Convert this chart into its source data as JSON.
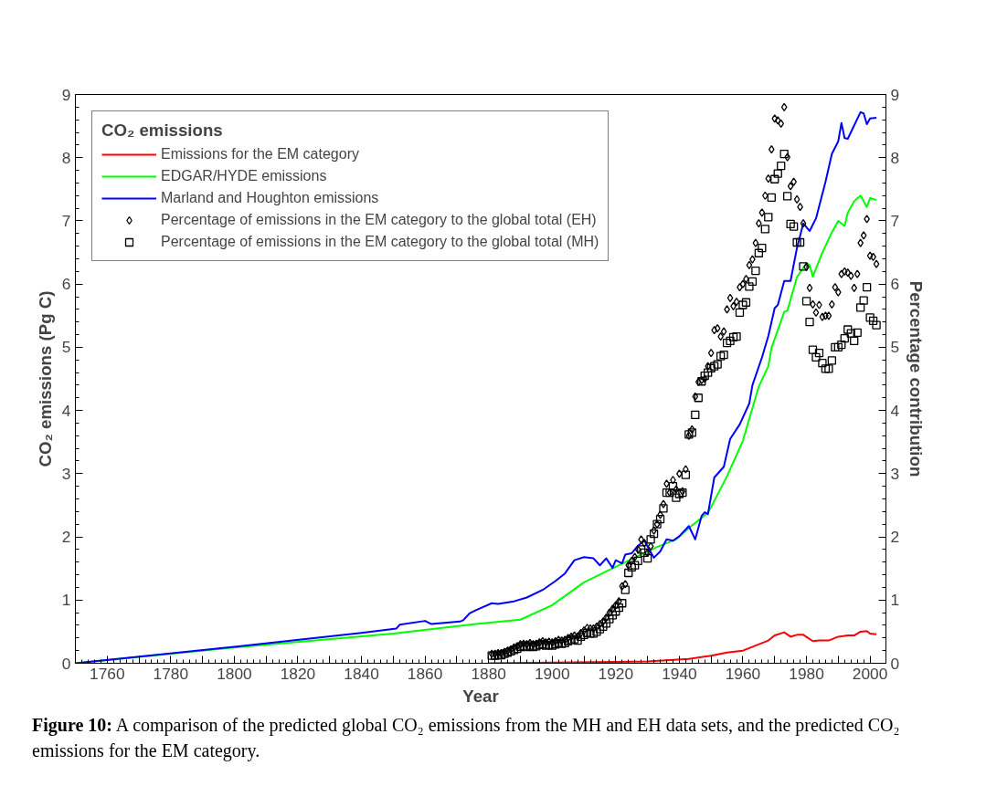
{
  "chart_data": {
    "type": "line",
    "xlabel": "Year",
    "ylabel": "CO₂ emissions (Pg C)",
    "y2label": "Percentage contribution",
    "legend_title": "CO₂ emissions",
    "xlim": [
      1750,
      2005
    ],
    "ylim": [
      0,
      9
    ],
    "y2lim": [
      0,
      9
    ],
    "xticks": [
      {
        "value": 1750,
        "label": null
      },
      1760,
      {
        "value": 1770,
        "label": null
      },
      1780,
      {
        "value": 1790,
        "label": null
      },
      1800,
      {
        "value": 1810,
        "label": null
      },
      1820,
      {
        "value": 1830,
        "label": null
      },
      1840,
      {
        "value": 1850,
        "label": null
      },
      1860,
      {
        "value": 1870,
        "label": null
      },
      1880,
      {
        "value": 1890,
        "label": null
      },
      1900,
      {
        "value": 1910,
        "label": null
      },
      1920,
      {
        "value": 1930,
        "label": null
      },
      1940,
      {
        "value": 1950,
        "label": null
      },
      1960,
      {
        "value": 1970,
        "label": null
      },
      1980,
      {
        "value": 1990,
        "label": null
      },
      2000
    ],
    "yticks": [
      0,
      1,
      2,
      3,
      4,
      5,
      6,
      7,
      8,
      9
    ],
    "y2ticks": [
      0,
      1,
      2,
      3,
      4,
      5,
      6,
      7,
      8,
      9
    ],
    "grid": false,
    "legend": "top left",
    "x": [
      1881,
      1882,
      1883,
      1884,
      1885,
      1886,
      1887,
      1888,
      1889,
      1890,
      1891,
      1892,
      1893,
      1894,
      1895,
      1896,
      1897,
      1898,
      1899,
      1900,
      1901,
      1902,
      1903,
      1904,
      1905,
      1906,
      1907,
      1908,
      1909,
      1910,
      1911,
      1912,
      1913,
      1914,
      1915,
      1916,
      1917,
      1918,
      1919,
      1920,
      1921,
      1922,
      1923,
      1924,
      1925,
      1926,
      1927,
      1928,
      1929,
      1930,
      1931,
      1932,
      1933,
      1934,
      1935,
      1936,
      1937,
      1938,
      1939,
      1940,
      1941,
      1942,
      1943,
      1944,
      1945,
      1946,
      1947,
      1948,
      1949,
      1950,
      1951,
      1952,
      1953,
      1954,
      1955,
      1956,
      1957,
      1958,
      1959,
      1960,
      1961,
      1962,
      1963,
      1964,
      1965,
      1966,
      1967,
      1968,
      1969,
      1970,
      1971,
      1972,
      1973,
      1974,
      1975,
      1976,
      1977,
      1978,
      1979,
      1980,
      1981,
      1982,
      1983,
      1984,
      1985,
      1986,
      1987,
      1988,
      1989,
      1990,
      1991,
      1992,
      1993,
      1994,
      1995,
      1996,
      1997,
      1998,
      1999,
      2000,
      2001,
      2002
    ],
    "series": [
      {
        "name": "Emissions for the EM category",
        "color": "#ff0000",
        "x": [
          1880,
          1900,
          1920,
          1930,
          1943,
          1950,
          1955,
          1960,
          1964,
          1968,
          1970,
          1973,
          1975,
          1977,
          1979,
          1982,
          1984,
          1987,
          1990,
          1993,
          1995,
          1997,
          1999,
          2000,
          2002
        ],
        "values": [
          0,
          0.01,
          0.02,
          0.03,
          0.07,
          0.12,
          0.17,
          0.2,
          0.28,
          0.36,
          0.44,
          0.49,
          0.42,
          0.45,
          0.45,
          0.35,
          0.36,
          0.36,
          0.42,
          0.44,
          0.44,
          0.5,
          0.51,
          0.47,
          0.46
        ]
      },
      {
        "name": "EDGAR/HYDE emissions",
        "color": "#00ff00",
        "x": [
          1750,
          1800,
          1850,
          1876,
          1890,
          1900,
          1910,
          1921,
          1933,
          1939,
          1944,
          1949,
          1951,
          1955,
          1960,
          1965,
          1968,
          1969,
          1973,
          1974,
          1977,
          1980,
          1981,
          1982,
          1985,
          1988,
          1990,
          1992,
          1993,
          1995,
          1997,
          1999,
          2000,
          2002
        ],
        "values": [
          0,
          0.25,
          0.47,
          0.62,
          0.69,
          0.92,
          1.28,
          1.55,
          1.84,
          1.96,
          2.18,
          2.38,
          2.57,
          2.96,
          3.52,
          4.38,
          4.7,
          4.99,
          5.56,
          5.58,
          6.11,
          6.33,
          6.3,
          6.12,
          6.5,
          6.82,
          7.0,
          6.92,
          7.13,
          7.31,
          7.4,
          7.22,
          7.36,
          7.33
        ]
      },
      {
        "name": "Marland and Houghton emissions",
        "color": "#0000ff",
        "x": [
          1750,
          1800,
          1840,
          1851,
          1852,
          1860,
          1862,
          1871,
          1872,
          1874,
          1876,
          1881,
          1883,
          1888,
          1892,
          1897,
          1901,
          1904,
          1907,
          1910,
          1913,
          1915,
          1917,
          1919,
          1920,
          1922,
          1923,
          1925,
          1927,
          1929,
          1930,
          1932,
          1934,
          1936,
          1938,
          1940,
          1943,
          1945,
          1947,
          1948,
          1949,
          1951,
          1954,
          1956,
          1959,
          1962,
          1963,
          1966,
          1968,
          1970,
          1971,
          1973,
          1975,
          1977,
          1979,
          1981,
          1983,
          1986,
          1988,
          1990,
          1991,
          1992,
          1993,
          1997,
          1998,
          1999,
          2000,
          2002
        ],
        "values": [
          0,
          0.26,
          0.48,
          0.55,
          0.61,
          0.67,
          0.62,
          0.66,
          0.68,
          0.79,
          0.84,
          0.95,
          0.94,
          0.98,
          1.04,
          1.16,
          1.3,
          1.42,
          1.63,
          1.68,
          1.66,
          1.55,
          1.66,
          1.51,
          1.63,
          1.58,
          1.72,
          1.74,
          1.86,
          1.94,
          1.85,
          1.67,
          1.77,
          1.96,
          1.94,
          2.01,
          2.17,
          1.96,
          2.33,
          2.39,
          2.36,
          2.94,
          3.11,
          3.55,
          3.78,
          4.11,
          4.4,
          4.84,
          5.18,
          5.62,
          5.67,
          6.05,
          6.05,
          6.57,
          6.96,
          6.84,
          7.04,
          7.62,
          8.06,
          8.26,
          8.55,
          8.31,
          8.3,
          8.72,
          8.7,
          8.53,
          8.62,
          8.63
        ]
      },
      {
        "name": "Percentage of emissions in the EM category to the global total (EH)",
        "type": "scatter",
        "marker": "diamond",
        "axis": "y2",
        "color": "#000000",
        "values": [
          0.15,
          0.15,
          0.16,
          0.16,
          0.18,
          0.2,
          0.22,
          0.25,
          0.27,
          0.3,
          0.31,
          0.3,
          0.32,
          0.3,
          0.31,
          0.33,
          0.35,
          0.33,
          0.34,
          0.33,
          0.35,
          0.37,
          0.36,
          0.37,
          0.4,
          0.42,
          0.44,
          0.42,
          0.48,
          0.52,
          0.56,
          0.55,
          0.55,
          0.58,
          0.62,
          0.66,
          0.72,
          0.8,
          0.86,
          0.92,
          0.98,
          1.22,
          1.25,
          1.55,
          1.62,
          1.68,
          1.8,
          1.96,
          1.9,
          1.75,
          1.85,
          2.1,
          2.2,
          2.35,
          2.52,
          2.84,
          2.7,
          2.9,
          2.75,
          3.0,
          2.72,
          3.07,
          3.6,
          3.7,
          4.22,
          4.45,
          4.48,
          4.5,
          4.7,
          4.91,
          5.27,
          5.3,
          5.17,
          5.25,
          5.6,
          5.78,
          5.65,
          5.72,
          5.95,
          6.0,
          6.08,
          6.3,
          6.39,
          6.65,
          6.96,
          7.13,
          7.4,
          7.67,
          8.13,
          8.62,
          8.59,
          8.54,
          8.8,
          8.01,
          7.55,
          7.62,
          7.34,
          7.22,
          6.96,
          6.27,
          5.94,
          5.68,
          5.55,
          5.67,
          5.48,
          5.5,
          5.5,
          5.68,
          5.95,
          5.87,
          6.16,
          6.2,
          6.18,
          6.13,
          5.94,
          6.16,
          6.65,
          6.77,
          7.03,
          6.45,
          6.43,
          6.32
        ]
      },
      {
        "name": "Percentage of emissions in the EM category to the global total (MH)",
        "type": "scatter",
        "marker": "square",
        "axis": "y2",
        "color": "#000000",
        "values": [
          0.12,
          0.12,
          0.13,
          0.13,
          0.15,
          0.17,
          0.19,
          0.21,
          0.23,
          0.26,
          0.27,
          0.26,
          0.28,
          0.26,
          0.27,
          0.29,
          0.3,
          0.28,
          0.29,
          0.28,
          0.3,
          0.32,
          0.31,
          0.32,
          0.35,
          0.37,
          0.38,
          0.36,
          0.42,
          0.45,
          0.48,
          0.47,
          0.47,
          0.5,
          0.54,
          0.58,
          0.63,
          0.7,
          0.76,
          0.82,
          0.88,
          0.95,
          1.16,
          1.43,
          1.52,
          1.55,
          1.62,
          1.8,
          1.75,
          1.66,
          1.96,
          2.05,
          2.2,
          2.28,
          2.45,
          2.7,
          2.7,
          2.8,
          2.62,
          2.68,
          2.7,
          2.98,
          3.62,
          3.65,
          3.93,
          4.2,
          4.46,
          4.55,
          4.6,
          4.67,
          4.7,
          4.73,
          4.86,
          4.88,
          5.07,
          5.1,
          5.16,
          5.17,
          5.55,
          5.67,
          5.71,
          5.96,
          6.04,
          6.21,
          6.49,
          6.57,
          6.87,
          7.06,
          7.37,
          7.66,
          7.75,
          7.87,
          8.06,
          7.39,
          6.95,
          6.91,
          6.66,
          6.66,
          6.28,
          5.73,
          5.4,
          4.96,
          4.84,
          4.91,
          4.75,
          4.66,
          4.66,
          4.79,
          5.0,
          5.0,
          5.04,
          5.14,
          5.28,
          5.22,
          5.1,
          5.23,
          5.63,
          5.74,
          5.95,
          5.47,
          5.42,
          5.35
        ]
      }
    ],
    "annotations": [
      "Figure 10:",
      "A comparison of the predicted global CO₂ emissions from the MH and EH data sets, and the predicted CO₂ emissions for the EM category."
    ]
  }
}
